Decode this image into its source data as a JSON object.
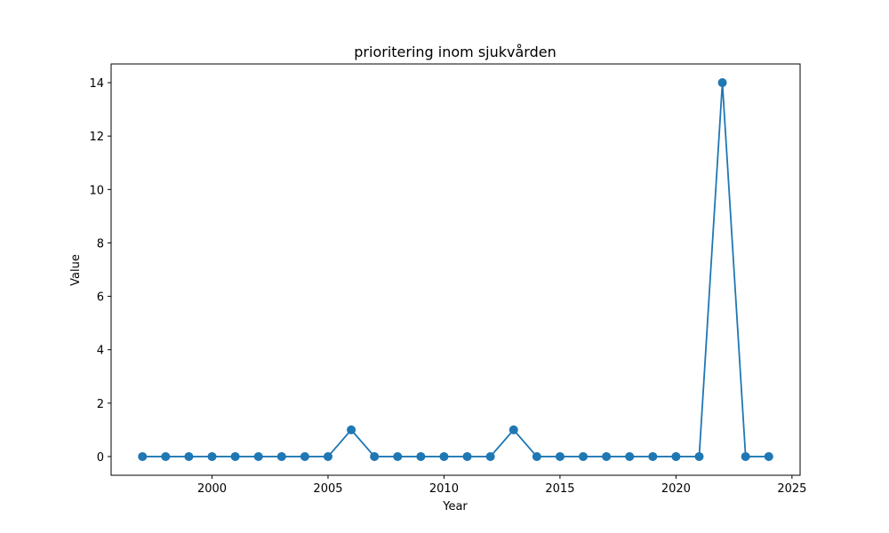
{
  "chart_data": {
    "type": "line",
    "title": "prioritering inom sjukvården",
    "xlabel": "Year",
    "ylabel": "Value",
    "x": [
      1997,
      1998,
      1999,
      2000,
      2001,
      2002,
      2003,
      2004,
      2005,
      2006,
      2007,
      2008,
      2009,
      2010,
      2011,
      2012,
      2013,
      2014,
      2015,
      2016,
      2017,
      2018,
      2019,
      2020,
      2021,
      2022,
      2023,
      2024
    ],
    "series": [
      {
        "values": [
          0,
          0,
          0,
          0,
          0,
          0,
          0,
          0,
          0,
          1,
          0,
          0,
          0,
          0,
          0,
          0,
          1,
          0,
          0,
          0,
          0,
          0,
          0,
          0,
          0,
          14,
          0,
          0
        ],
        "color": "#1f77b4",
        "marker": "circle"
      }
    ],
    "xlim": [
      1995.65,
      2025.35
    ],
    "ylim": [
      -0.7,
      14.7
    ],
    "xticks": [
      2000,
      2005,
      2010,
      2015,
      2020,
      2025
    ],
    "xtick_labels": [
      "2000",
      "2005",
      "2010",
      "2015",
      "2020",
      "2025"
    ],
    "yticks": [
      0,
      2,
      4,
      6,
      8,
      10,
      12,
      14
    ],
    "ytick_labels": [
      "0",
      "2",
      "4",
      "6",
      "8",
      "10",
      "12",
      "14"
    ],
    "grid": false,
    "legend": "none"
  }
}
